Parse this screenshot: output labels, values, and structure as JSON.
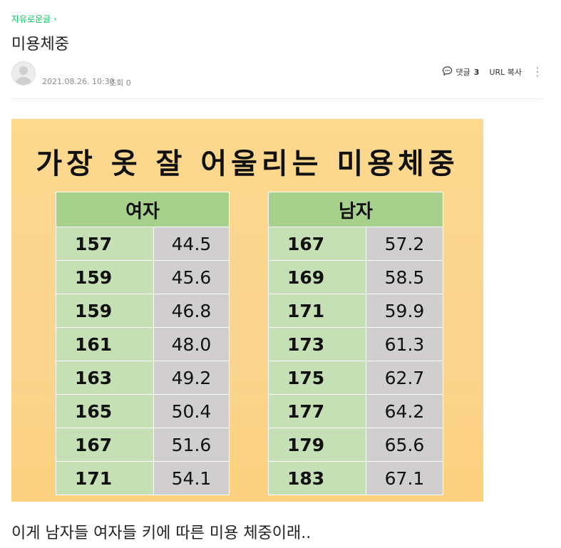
{
  "breadcrumb": {
    "label": "자유로운글",
    "chevron": "›"
  },
  "post": {
    "title": "미용체중",
    "date": "2021.08.26. 10:30",
    "views": "조회 0",
    "comment_label": "댓글",
    "comment_count": "3",
    "url_copy": "URL 복사",
    "more": "⋮"
  },
  "poster": {
    "title": "가장 옷 잘 어울리는 미용체중",
    "women": {
      "header": "여자",
      "rows": [
        {
          "height": "157",
          "weight": "44.5"
        },
        {
          "height": "159",
          "weight": "45.6"
        },
        {
          "height": "159",
          "weight": "46.8"
        },
        {
          "height": "161",
          "weight": "48.0"
        },
        {
          "height": "163",
          "weight": "49.2"
        },
        {
          "height": "165",
          "weight": "50.4"
        },
        {
          "height": "167",
          "weight": "51.6"
        },
        {
          "height": "171",
          "weight": "54.1"
        }
      ]
    },
    "men": {
      "header": "남자",
      "rows": [
        {
          "height": "167",
          "weight": "57.2"
        },
        {
          "height": "169",
          "weight": "58.5"
        },
        {
          "height": "171",
          "weight": "59.9"
        },
        {
          "height": "173",
          "weight": "61.3"
        },
        {
          "height": "175",
          "weight": "62.7"
        },
        {
          "height": "177",
          "weight": "64.2"
        },
        {
          "height": "179",
          "weight": "65.6"
        },
        {
          "height": "183",
          "weight": "67.1"
        }
      ]
    }
  },
  "body": {
    "text": "이게 남자들 여자들 키에 따른 미용 체중이래.."
  },
  "colors": {
    "accent_green": "#03c75a",
    "poster_bg": "#fcd98e",
    "header_green": "#a8d08d",
    "height_cell": "#c5e0b4",
    "weight_cell": "#d0cece"
  },
  "icons": [
    "chevron-right-icon",
    "avatar-icon",
    "comment-icon",
    "more-vertical-icon"
  ]
}
